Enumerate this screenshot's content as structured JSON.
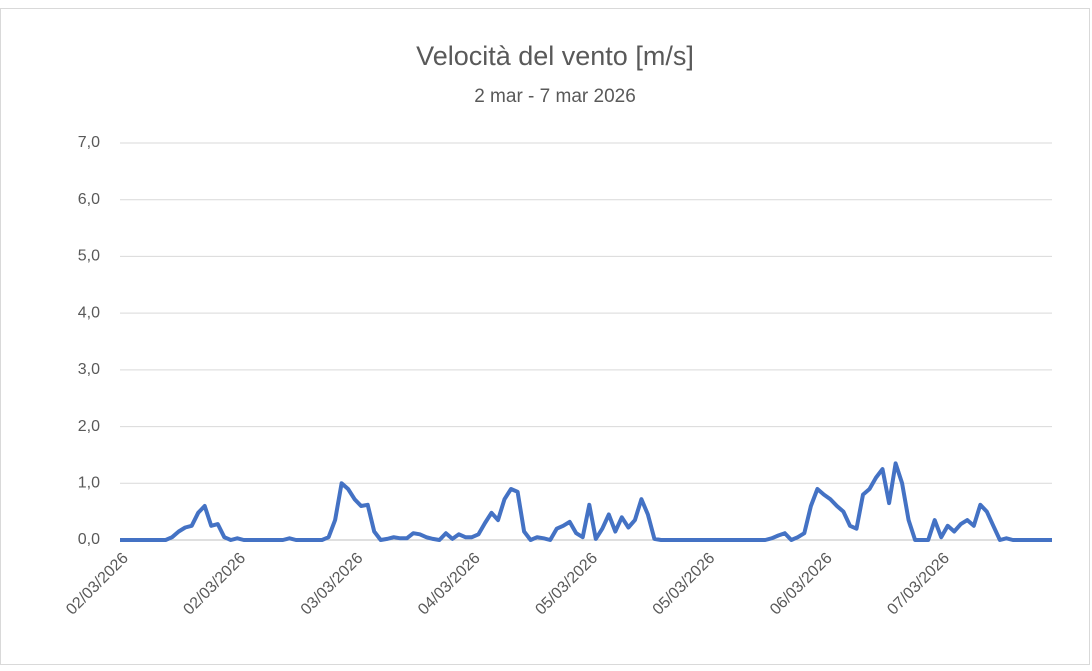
{
  "chart_data": {
    "type": "line",
    "title": "Velocità del vento [m/s]",
    "subtitle": "2 mar - 7 mar 2026",
    "categories": [
      "02/03/2026",
      null,
      null,
      null,
      null,
      null,
      null,
      null,
      null,
      null,
      null,
      null,
      null,
      null,
      null,
      null,
      null,
      null,
      "02/03/2026",
      null,
      null,
      null,
      null,
      null,
      null,
      null,
      null,
      null,
      null,
      null,
      null,
      null,
      null,
      null,
      null,
      null,
      "03/03/2026",
      null,
      null,
      null,
      null,
      null,
      null,
      null,
      null,
      null,
      null,
      null,
      null,
      null,
      null,
      null,
      null,
      null,
      "04/03/2026",
      null,
      null,
      null,
      null,
      null,
      null,
      null,
      null,
      null,
      null,
      null,
      null,
      null,
      null,
      null,
      null,
      null,
      "05/03/2026",
      null,
      null,
      null,
      null,
      null,
      null,
      null,
      null,
      null,
      null,
      null,
      null,
      null,
      null,
      null,
      null,
      null,
      "05/03/2026",
      null,
      null,
      null,
      null,
      null,
      null,
      null,
      null,
      null,
      null,
      null,
      null,
      null,
      null,
      null,
      null,
      null,
      "06/03/2026",
      null,
      null,
      null,
      null,
      null,
      null,
      null,
      null,
      null,
      null,
      null,
      null,
      null,
      null,
      null,
      null,
      null,
      "07/03/2026",
      null,
      null,
      null,
      null,
      null,
      null,
      null,
      null,
      null,
      null,
      null,
      null,
      null,
      null,
      null,
      null,
      null
    ],
    "values": [
      0,
      0,
      0,
      0,
      0,
      0,
      0,
      0,
      0.05,
      0.15,
      0.22,
      0.25,
      0.48,
      0.6,
      0.25,
      0.28,
      0.05,
      0,
      0.03,
      0,
      0,
      0,
      0,
      0,
      0,
      0,
      0.03,
      0,
      0,
      0,
      0,
      0,
      0.05,
      0.35,
      1.0,
      0.9,
      0.72,
      0.6,
      0.62,
      0.15,
      0,
      0.02,
      0.05,
      0.03,
      0.03,
      0.12,
      0.1,
      0.05,
      0.02,
      0,
      0.12,
      0.02,
      0.1,
      0.05,
      0.05,
      0.1,
      0.3,
      0.48,
      0.35,
      0.72,
      0.9,
      0.85,
      0.15,
      0,
      0.05,
      0.03,
      0,
      0.2,
      0.25,
      0.32,
      0.12,
      0.05,
      0.62,
      0.02,
      0.2,
      0.45,
      0.15,
      0.4,
      0.22,
      0.35,
      0.72,
      0.45,
      0.02,
      0,
      0,
      0,
      0,
      0,
      0,
      0,
      0,
      0,
      0,
      0,
      0,
      0,
      0,
      0,
      0,
      0,
      0.03,
      0.08,
      0.12,
      0,
      0.05,
      0.12,
      0.6,
      0.9,
      0.8,
      0.72,
      0.6,
      0.5,
      0.25,
      0.2,
      0.8,
      0.9,
      1.1,
      1.25,
      0.65,
      1.35,
      1.0,
      0.35,
      0,
      0,
      0,
      0.35,
      0.05,
      0.25,
      0.15,
      0.28,
      0.35,
      0.25,
      0.62,
      0.5,
      0.25,
      0,
      0.03,
      0,
      0,
      0,
      0,
      0,
      0,
      0
    ],
    "color": "#4472c4",
    "ylim": [
      0,
      7
    ],
    "yticks": [
      {
        "value": 0,
        "label": "0,0"
      },
      {
        "value": 1,
        "label": "1,0"
      },
      {
        "value": 2,
        "label": "2,0"
      },
      {
        "value": 3,
        "label": "3,0"
      },
      {
        "value": 4,
        "label": "4,0"
      },
      {
        "value": 5,
        "label": "5,0"
      },
      {
        "value": 6,
        "label": "6,0"
      },
      {
        "value": 7,
        "label": "7,0"
      }
    ],
    "grid": true
  }
}
